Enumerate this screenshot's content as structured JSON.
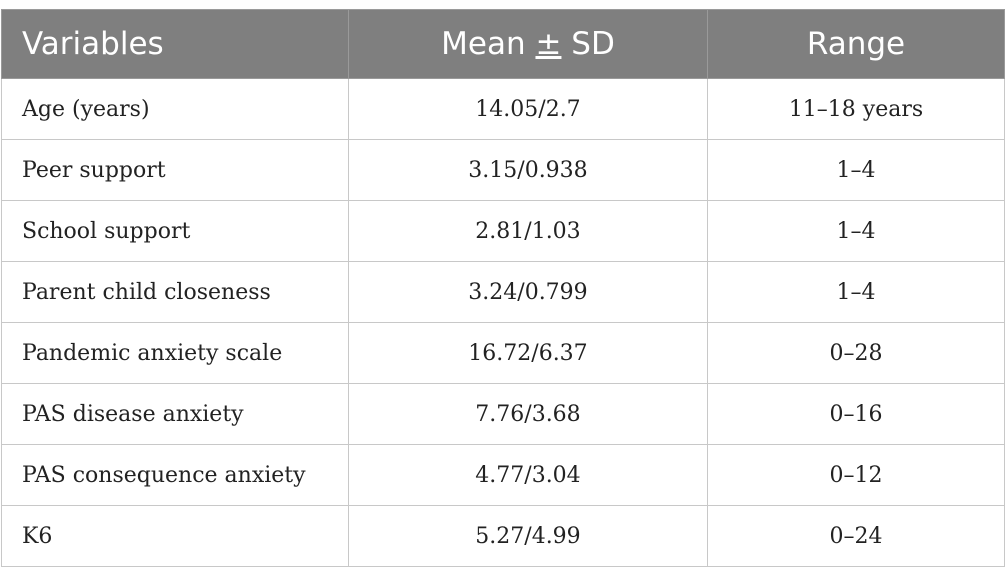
{
  "table": {
    "headers": {
      "variables": "Variables",
      "mean_prefix": "Mean ",
      "mean_pm": "±",
      "mean_suffix": " SD",
      "range": "Range"
    },
    "rows": [
      {
        "variable": "Age (years)",
        "mean_sd": "14.05/2.7",
        "range": "11–18 years"
      },
      {
        "variable": "Peer support",
        "mean_sd": "3.15/0.938",
        "range": "1–4"
      },
      {
        "variable": "School support",
        "mean_sd": "2.81/1.03",
        "range": "1–4"
      },
      {
        "variable": "Parent child closeness",
        "mean_sd": "3.24/0.799",
        "range": "1–4"
      },
      {
        "variable": "Pandemic anxiety scale",
        "mean_sd": "16.72/6.37",
        "range": "0–28"
      },
      {
        "variable": "PAS disease anxiety",
        "mean_sd": "7.76/3.68",
        "range": "0–16"
      },
      {
        "variable": "PAS consequence anxiety",
        "mean_sd": "4.77/3.04",
        "range": "0–12"
      },
      {
        "variable": "K6",
        "mean_sd": "5.27/4.99",
        "range": "0–24"
      }
    ]
  }
}
